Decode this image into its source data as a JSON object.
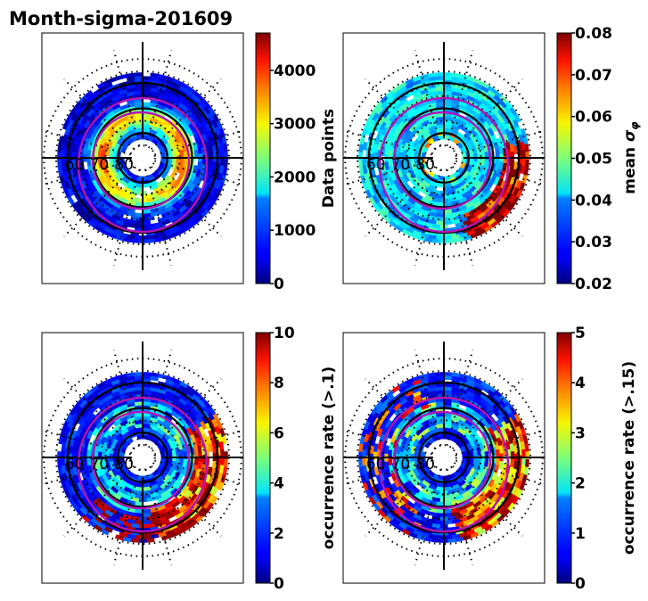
{
  "figure": {
    "title": "Month-sigma-201609"
  },
  "chart_data": [
    {
      "type": "heatmap",
      "projection": "polar (magnetic latitude / MLT)",
      "panel": "top-left",
      "title": "Month-sigma-201609",
      "quantity": "Data points",
      "colormap": "jet",
      "colorbar": {
        "label": "Data points",
        "range": [
          0,
          4700
        ],
        "ticks": [
          0,
          1000,
          2000,
          3000,
          4000
        ],
        "tick_labels": [
          "0",
          "1000",
          "2000",
          "3000",
          "4000"
        ]
      },
      "latitude_labels": [
        "60",
        "70",
        "80"
      ],
      "latitude_range": [
        55,
        90
      ],
      "description": "Broad ring of high counts (2000-4000) between ~68-78 deg latitude, peak on dawn/dusk flanks; low (<1000) near 60 deg and poleward of 80 deg"
    },
    {
      "type": "heatmap",
      "projection": "polar (magnetic latitude / MLT)",
      "panel": "top-right",
      "quantity": "mean sigma_phi",
      "colormap": "jet",
      "colorbar": {
        "label": "mean σ_φ",
        "range": [
          0.02,
          0.08
        ],
        "ticks": [
          0.02,
          0.03,
          0.04,
          0.05,
          0.06,
          0.07,
          0.08
        ],
        "tick_labels": [
          "0.02",
          "0.03",
          "0.04",
          "0.05",
          "0.06",
          "0.07",
          "0.08"
        ]
      },
      "latitude_labels": [
        "60",
        "70",
        "80"
      ],
      "latitude_range": [
        55,
        90
      ],
      "description": "Mostly 0.025-0.045; elevated values (0.06-0.08) along dawn-side low-latitude edge"
    },
    {
      "type": "heatmap",
      "projection": "polar (magnetic latitude / MLT)",
      "panel": "bottom-left",
      "quantity": "occurrence rate (>.1)",
      "colormap": "jet",
      "colorbar": {
        "label": "occurrence rate (>.1)",
        "range": [
          0,
          10
        ],
        "ticks": [
          0,
          2,
          4,
          6,
          8,
          10
        ],
        "tick_labels": [
          "0",
          "2",
          "4",
          "6",
          "8",
          "10"
        ]
      },
      "latitude_labels": [
        "60",
        "70",
        "80"
      ],
      "latitude_range": [
        55,
        90
      ],
      "description": "Low (<2) over most of the map; saturated values (10) along dawn-side sector between ~60-68 deg"
    },
    {
      "type": "heatmap",
      "projection": "polar (magnetic latitude / MLT)",
      "panel": "bottom-right",
      "quantity": "occurrence rate (>.15)",
      "colormap": "jet",
      "colorbar": {
        "label": "occurrence rate (>.15)",
        "range": [
          0,
          5
        ],
        "ticks": [
          0,
          1,
          2,
          3,
          4,
          5
        ],
        "tick_labels": [
          "0",
          "1",
          "2",
          "3",
          "4",
          "5"
        ]
      },
      "latitude_labels": [
        "60",
        "70",
        "80"
      ],
      "latitude_range": [
        55,
        90
      ],
      "description": "Mostly 0-2; high (4-5) patches along dawn and night side low-latitude edge"
    }
  ],
  "overlay": {
    "oval_color": "#b414b4",
    "grid_color": "#000000"
  }
}
